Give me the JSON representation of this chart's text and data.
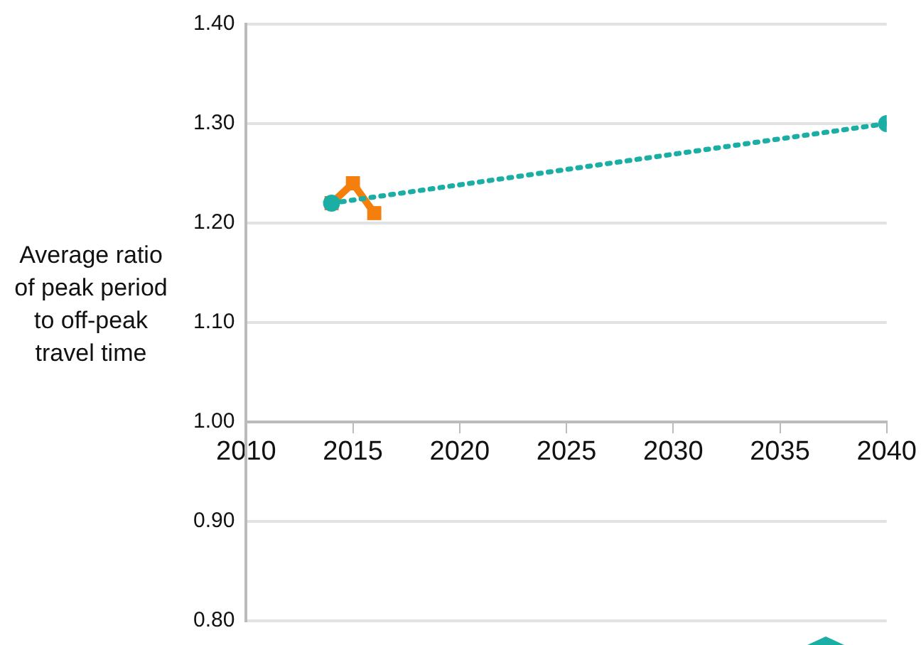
{
  "chart_data": {
    "type": "line",
    "ylabel": "Average ratio of peak period to off-peak travel time",
    "xlim": [
      2010,
      2040
    ],
    "xticks": [
      2010,
      2015,
      2020,
      2025,
      2030,
      2035,
      2040
    ],
    "ylim": [
      0.8,
      1.4
    ],
    "yticks": [
      {
        "value": 0.8,
        "label": "0.80"
      },
      {
        "value": 0.9,
        "label": "0.90"
      },
      {
        "value": 1.0,
        "label": "1.00"
      },
      {
        "value": 1.1,
        "label": "1.10"
      },
      {
        "value": 1.2,
        "label": "1.20"
      },
      {
        "value": 1.3,
        "label": "1.30"
      },
      {
        "value": 1.4,
        "label": "1.40"
      }
    ],
    "grid": "y",
    "series": [
      {
        "color": "#f47f0c",
        "x": [
          2014,
          2015,
          2016
        ],
        "values": [
          1.22,
          1.24,
          1.21
        ],
        "marker": "square",
        "line_style": "solid"
      },
      {
        "color": "#1aaea5",
        "x": [
          2014,
          2040
        ],
        "values": [
          1.22,
          1.3
        ],
        "marker": "circle",
        "line_style": "dotted"
      }
    ]
  }
}
